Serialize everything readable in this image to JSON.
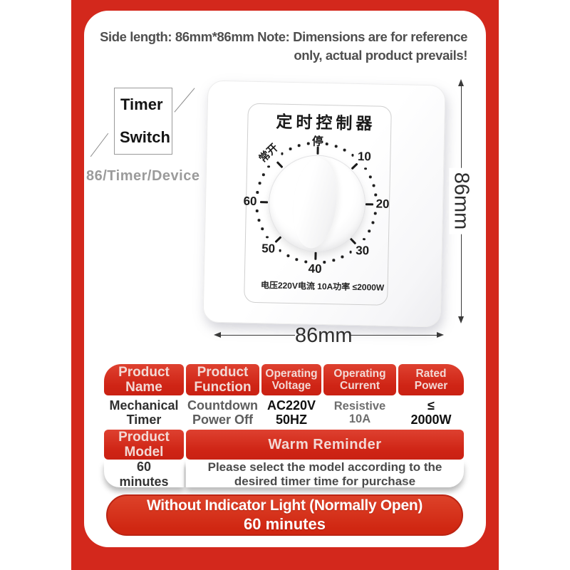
{
  "colors": {
    "frame_red": "#d3281c",
    "pill_red": "#d02712",
    "header_text_pink": "#f3d9d5"
  },
  "top_note": {
    "line1": "Side length: 86mm*86mm Note: Dimensions are for reference",
    "line2": "only, actual product prevails!"
  },
  "sketch_label": {
    "line1": "Timer",
    "line2": "Switch",
    "caption": "86/Timer/Device"
  },
  "panel": {
    "title": "定时控制器",
    "spec": "电压220V电流 10A功率 ≤2000W",
    "dial": {
      "stop": "停",
      "normally_open": "常开",
      "numbers": [
        "10",
        "20",
        "30",
        "40",
        "50",
        "60"
      ]
    }
  },
  "dimensions": {
    "height_label": "86mm",
    "width_label": "86mm"
  },
  "table": {
    "h1": [
      "Product Name",
      "Product Function",
      "Operating Voltage",
      "Operating Current",
      "Rated Power"
    ],
    "v1": [
      [
        "Mechanical",
        "Timer"
      ],
      [
        "Countdown",
        "Power Off"
      ],
      [
        "AC220V",
        "50HZ"
      ],
      [
        "Resistive 10A"
      ],
      [
        "≤",
        "2000W"
      ]
    ],
    "h2": [
      "Product Model",
      "Warm Reminder"
    ],
    "v2": [
      [
        "60",
        "minutes"
      ],
      [
        "Please select the model according to the",
        "desired timer time for purchase"
      ]
    ]
  },
  "pill": {
    "line1": "Without Indicator Light (Normally Open)",
    "line2": "60 minutes"
  }
}
